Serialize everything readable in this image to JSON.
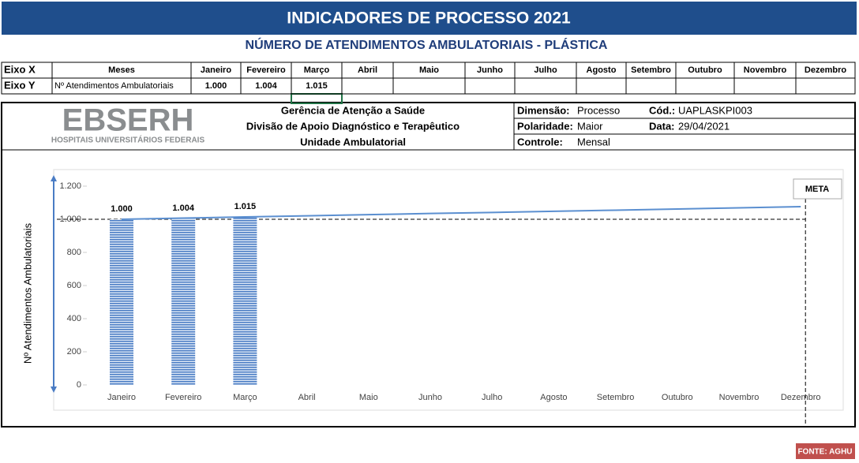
{
  "header": {
    "title": "INDICADORES DE PROCESSO 2021",
    "subtitle": "NÚMERO DE ATENDIMENTOS AMBULATORIAIS -  PLÁSTICA"
  },
  "table": {
    "rows": [
      [
        "Eixo X",
        "Meses",
        "Janeiro",
        "Fevereiro",
        "Março",
        "Abril",
        "Maio",
        "Junho",
        "Julho",
        "Agosto",
        "Setembro",
        "Outubro",
        "Novembro",
        "Dezembro"
      ],
      [
        "Eixo Y",
        "Nº Atendimentos Ambulatoriais",
        "1.000",
        "1.004",
        "1.015"
      ]
    ]
  },
  "info": {
    "logo": "EBSERH",
    "logo_subtitle": "HOSPITAIS UNIVERSITÁRIOS FEDERAIS",
    "org_lines": [
      "Gerência de Atenção a Saúde",
      "Divisão de Apoio Diagnóstico e Terapêutico",
      "Unidade Ambulatorial"
    ],
    "fields": [
      {
        "label": "Dimensão:",
        "value": "Processo"
      },
      {
        "label": "Cód.:",
        "value": "UAPLASKPI003"
      },
      {
        "label": "Polaridade:",
        "value": "Maior"
      },
      {
        "label": "Data:",
        "value": "29/04/2021"
      },
      {
        "label": "Controle:",
        "value": "Mensal"
      }
    ]
  },
  "chart_data": {
    "type": "bar",
    "y_label": "Nº Atendimentos Ambulatoriais",
    "categories": [
      "Janeiro",
      "Fevereiro",
      "Março",
      "Abril",
      "Maio",
      "Junho",
      "Julho",
      "Agosto",
      "Setembro",
      "Outubro",
      "Novembro",
      "Dezembro"
    ],
    "series": [
      {
        "type": "bar",
        "color": "#4a7cc4",
        "values": [
          1000,
          1004,
          1015,
          null,
          null,
          null,
          null,
          null,
          null,
          null,
          null,
          null
        ],
        "value_labels": [
          "1.000",
          "1.004",
          "1.015",
          null,
          null,
          null,
          null,
          null,
          null,
          null,
          null,
          null
        ]
      },
      {
        "type": "line",
        "color": "#5b8fd0",
        "values": [
          1000,
          1007,
          1014,
          1021,
          1028,
          1035,
          1041,
          1048,
          1055,
          1062,
          1069,
          1076
        ]
      }
    ],
    "meta": {
      "label": "META",
      "value": 1000
    },
    "ylim": [
      0,
      1200
    ],
    "yticks": [
      0,
      200,
      400,
      600,
      800,
      {
        "value": 1000,
        "label": "1.000"
      },
      {
        "value": 1200,
        "label": "1.200"
      }
    ]
  },
  "footer": {
    "source": "FONTE: AGHU"
  }
}
